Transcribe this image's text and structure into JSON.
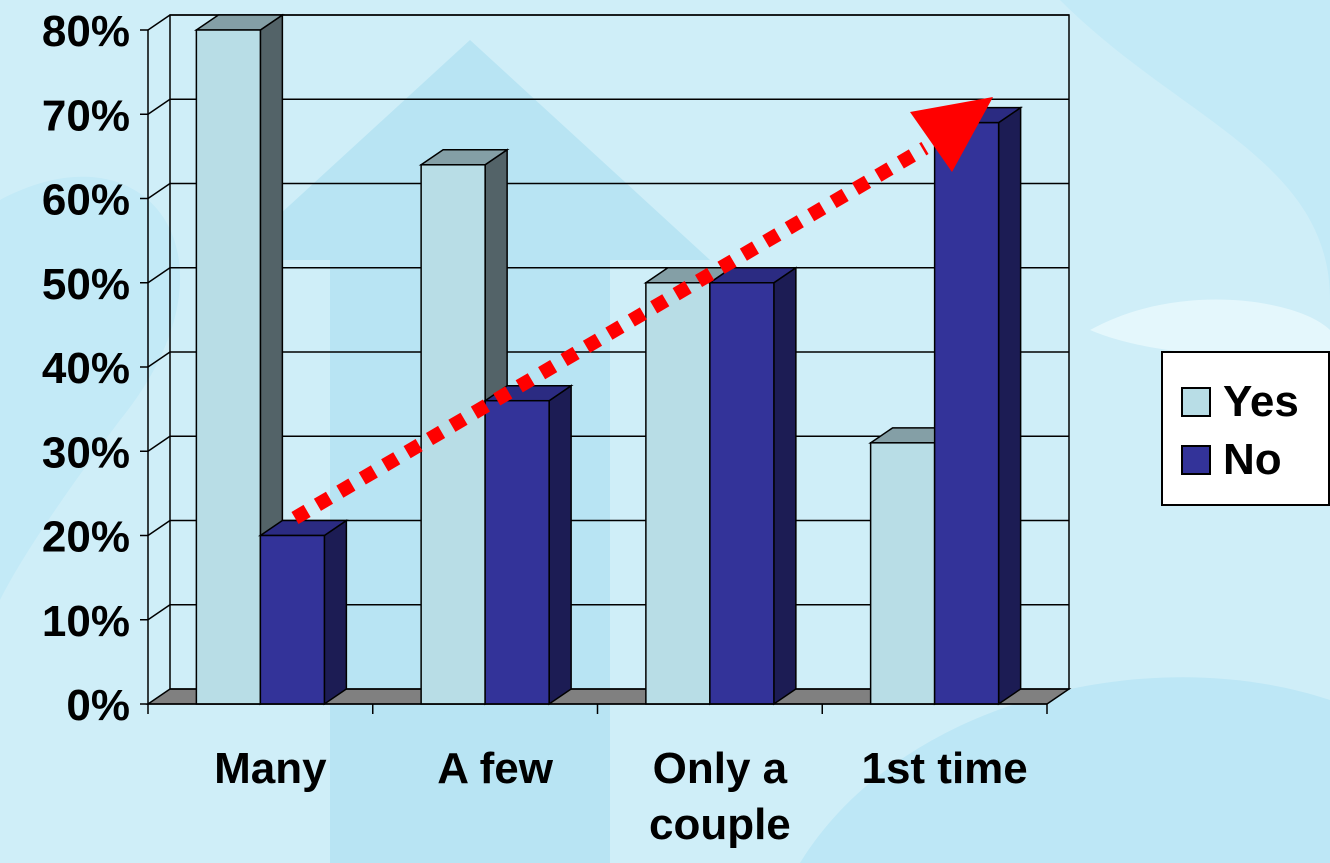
{
  "chart_data": {
    "type": "bar",
    "categories": [
      "Many",
      "A few",
      "Only a couple",
      "1st time"
    ],
    "category_lines": [
      [
        "Many"
      ],
      [
        "A few"
      ],
      [
        "Only a",
        "couple"
      ],
      [
        "1st time"
      ]
    ],
    "series": [
      {
        "name": "Yes",
        "values": [
          80,
          64,
          50,
          31
        ],
        "color": "#b8dde6"
      },
      {
        "name": "No",
        "values": [
          20,
          36,
          50,
          69
        ],
        "color": "#333399"
      }
    ],
    "ylim": [
      0,
      80
    ],
    "y_ticks": [
      "0%",
      "10%",
      "20%",
      "30%",
      "40%",
      "50%",
      "60%",
      "70%",
      "80%"
    ],
    "grid": true,
    "legend_position": "right",
    "annotation": "red dotted arrow trending up from 'Many / No' to '1st time / No'"
  },
  "colors": {
    "background": "#cfeef8",
    "yes": "#b8dde6",
    "no": "#333399",
    "arrow": "#ff0000"
  }
}
